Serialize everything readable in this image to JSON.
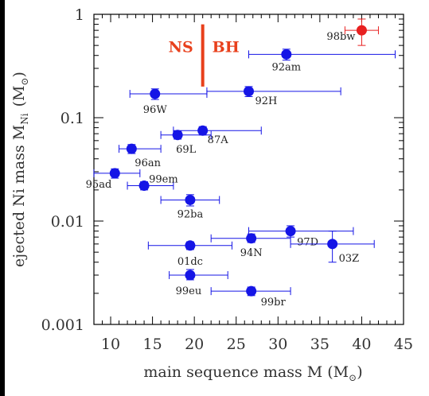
{
  "chart_data": {
    "type": "scatter",
    "xlabel": "main sequence mass M (M",
    "xlabel_sub": "⊙",
    "xlabel_close": ")",
    "ylabel": "ejected Ni mass M",
    "ylabel_sub": "Ni",
    "ylabel_unit": "(M",
    "ylabel_unit_sub": "⊙",
    "ylabel_unit_close": ")",
    "xlim": [
      8,
      45
    ],
    "ylim": [
      0.001,
      1
    ],
    "y_scale": "log",
    "x_ticks": [
      10,
      15,
      20,
      25,
      30,
      35,
      40,
      45
    ],
    "x_tick_labels": [
      "10",
      "15",
      "20",
      "25",
      "30",
      "35",
      "40",
      "45"
    ],
    "y_ticks": [
      0.001,
      0.01,
      0.1,
      1
    ],
    "y_tick_labels": [
      "0.001",
      "0.01",
      "0.1",
      "1"
    ],
    "divider": {
      "x": 21,
      "y_range": [
        0.2,
        0.8
      ],
      "left_label": "NS",
      "right_label": "BH",
      "color": "#e8401c"
    },
    "colors": {
      "main": "#1515e6",
      "highlight": "#e82020",
      "axis": "#000000",
      "label": "#333333"
    },
    "points": [
      {
        "label": "98bw",
        "x": 40,
        "y": 0.7,
        "xerr": [
          38,
          42
        ],
        "yerr": [
          0.5,
          0.9
        ],
        "color": "#e82020"
      },
      {
        "label": "92am",
        "x": 31,
        "y": 0.41,
        "xerr": [
          26.5,
          44
        ],
        "yerr": [
          0.36,
          0.46
        ],
        "color": "#1515e6"
      },
      {
        "label": "92H",
        "x": 26.5,
        "y": 0.18,
        "xerr": [
          21.5,
          37.5
        ],
        "yerr": [
          0.16,
          0.2
        ],
        "color": "#1515e6"
      },
      {
        "label": "96W",
        "x": 15.3,
        "y": 0.17,
        "xerr": [
          12.3,
          21.5
        ],
        "yerr": [
          0.15,
          0.19
        ],
        "color": "#1515e6"
      },
      {
        "label": "87A",
        "x": 21,
        "y": 0.075,
        "xerr": [
          17.5,
          28
        ],
        "yerr": [
          0.068,
          0.082
        ],
        "color": "#1515e6"
      },
      {
        "label": "69L",
        "x": 18,
        "y": 0.068,
        "xerr": [
          16,
          22
        ],
        "yerr": [
          0.062,
          0.074
        ],
        "color": "#1515e6"
      },
      {
        "label": "96an",
        "x": 12.5,
        "y": 0.05,
        "xerr": [
          11,
          16
        ],
        "yerr": [
          0.045,
          0.055
        ],
        "color": "#1515e6"
      },
      {
        "label": "95ad",
        "x": 10.5,
        "y": 0.029,
        "xerr": [
          8,
          13.5
        ],
        "yerr": [
          0.026,
          0.032
        ],
        "color": "#1515e6"
      },
      {
        "label": "99em",
        "x": 14,
        "y": 0.022,
        "xerr": [
          12,
          17.5
        ],
        "yerr": [
          0.02,
          0.024
        ],
        "color": "#1515e6"
      },
      {
        "label": "92ba",
        "x": 19.5,
        "y": 0.016,
        "xerr": [
          16,
          23
        ],
        "yerr": [
          0.014,
          0.018
        ],
        "color": "#1515e6"
      },
      {
        "label": "97D",
        "x": 31.5,
        "y": 0.008,
        "xerr": [
          26.5,
          39
        ],
        "yerr": [
          0.007,
          0.009
        ],
        "color": "#1515e6"
      },
      {
        "label": "94N",
        "x": 26.8,
        "y": 0.0068,
        "xerr": [
          22,
          31.5
        ],
        "yerr": [
          0.0062,
          0.0075
        ],
        "color": "#1515e6"
      },
      {
        "label": "03Z",
        "x": 36.5,
        "y": 0.006,
        "xerr": [
          31.5,
          41.5
        ],
        "yerr": [
          0.004,
          0.008
        ],
        "color": "#1515e6"
      },
      {
        "label": "01dc",
        "x": 19.5,
        "y": 0.0058,
        "xerr": [
          14.5,
          24.5
        ],
        "yerr": [
          0.0053,
          0.0063
        ],
        "color": "#1515e6"
      },
      {
        "label": "99eu",
        "x": 19.5,
        "y": 0.003,
        "xerr": [
          17,
          24
        ],
        "yerr": [
          0.0027,
          0.0034
        ],
        "color": "#1515e6"
      },
      {
        "label": "99br",
        "x": 26.8,
        "y": 0.0021,
        "xerr": [
          22,
          31.5
        ],
        "yerr": [
          0.0019,
          0.0023
        ],
        "color": "#1515e6"
      }
    ]
  }
}
